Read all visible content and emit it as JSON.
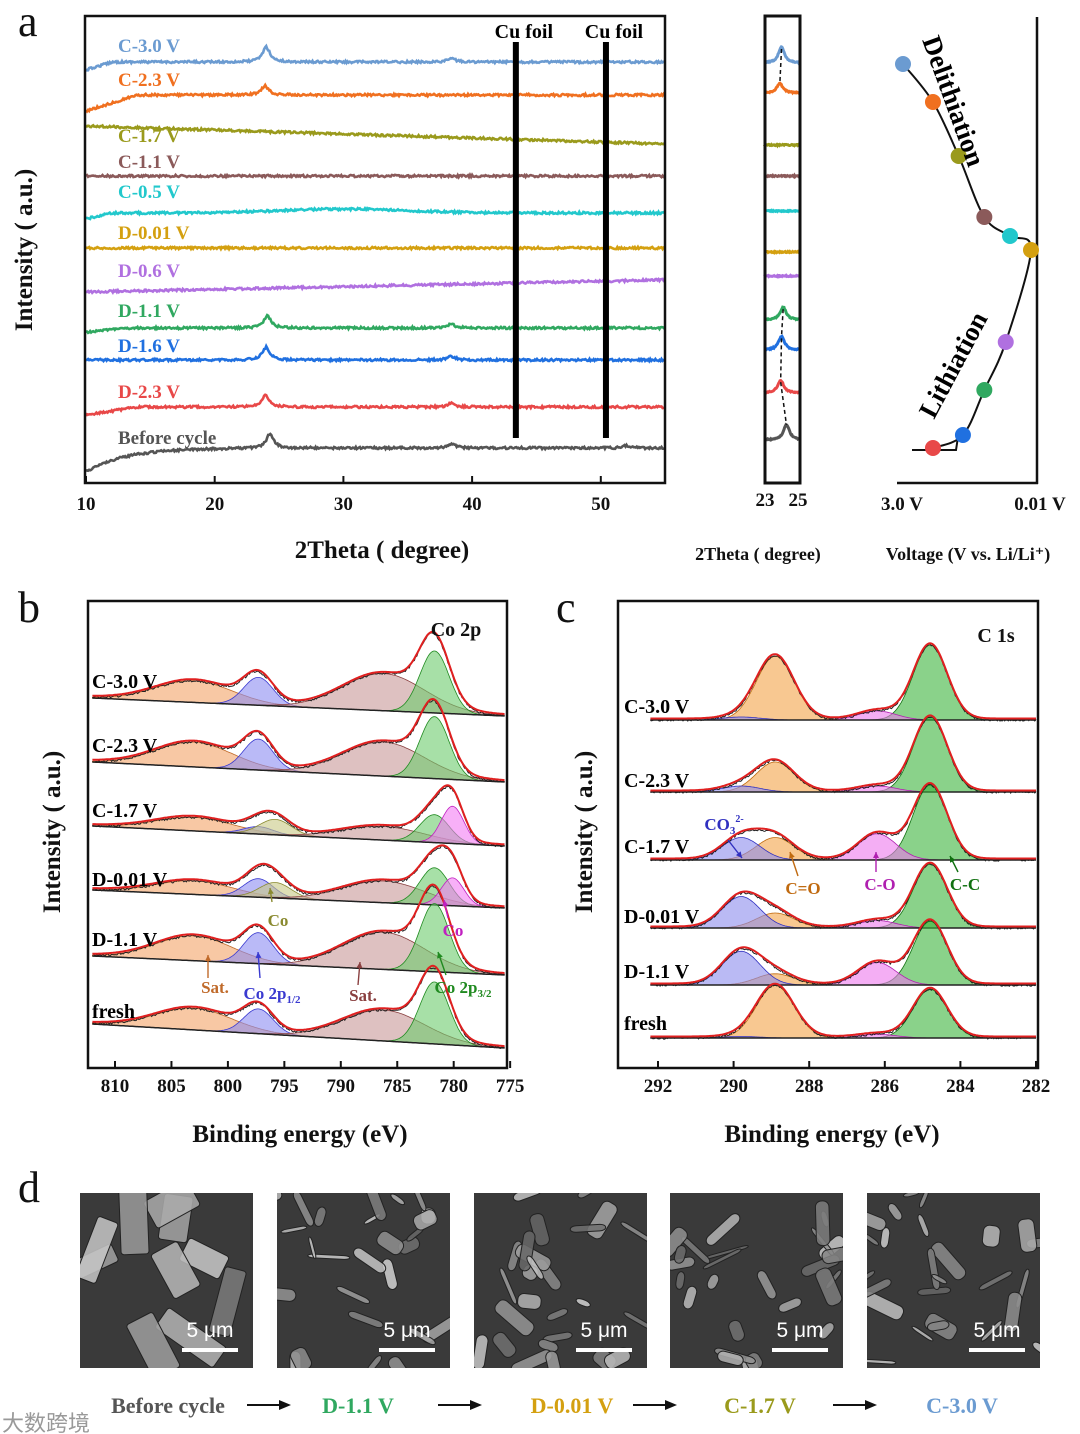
{
  "panel_labels": {
    "a": "a",
    "b": "b",
    "c": "c",
    "d": "d"
  },
  "chart_data": [
    {
      "type": "line",
      "panel": "a",
      "title": "",
      "xlabel": "2Theta  ( degree)",
      "ylabel": "Intensity ( a.u.)",
      "xlim": [
        10,
        55
      ],
      "xticks": [
        10,
        20,
        30,
        40,
        50
      ],
      "annotations": [
        {
          "text": "Cu foil",
          "x": 43.4
        },
        {
          "text": "Cu foil",
          "x": 50.4
        }
      ],
      "series": [
        {
          "name": "C-3.0 V",
          "color": "#6b9bd1",
          "peaks": [
            [
              24.0,
              1.0
            ],
            [
              38.4,
              0.25
            ]
          ]
        },
        {
          "name": "C-2.3 V",
          "color": "#f07020",
          "peaks": [
            [
              23.9,
              0.6
            ]
          ]
        },
        {
          "name": "C-1.7 V",
          "color": "#9a9a1c",
          "peaks": []
        },
        {
          "name": "C-1.1 V",
          "color": "#8b5a5a",
          "peaks": []
        },
        {
          "name": "C-0.5 V",
          "color": "#22c8cc",
          "peaks": []
        },
        {
          "name": "D-0.01 V",
          "color": "#d4a010",
          "peaks": []
        },
        {
          "name": "D-0.6 V",
          "color": "#b070e0",
          "peaks": []
        },
        {
          "name": "D-1.1 V",
          "color": "#30a860",
          "peaks": [
            [
              24.1,
              0.8
            ],
            [
              38.4,
              0.25
            ]
          ]
        },
        {
          "name": "D-1.6 V",
          "color": "#2070e0",
          "peaks": [
            [
              24.0,
              0.85
            ],
            [
              38.4,
              0.25
            ]
          ]
        },
        {
          "name": "D-2.3 V",
          "color": "#e84848",
          "peaks": [
            [
              23.95,
              0.8
            ],
            [
              38.4,
              0.25
            ]
          ]
        },
        {
          "name": "Before cycle",
          "color": "#555555",
          "peaks": [
            [
              24.3,
              0.95
            ],
            [
              38.4,
              0.3
            ],
            [
              52.0,
              0.15
            ]
          ]
        }
      ]
    },
    {
      "type": "line",
      "panel": "a-inset",
      "xlabel": "2Theta  ( degree)",
      "xlim": [
        23,
        25
      ],
      "xticks": [
        23,
        25
      ]
    },
    {
      "type": "scatter",
      "panel": "a-voltage",
      "xlabel": "Voltage (V vs. Li/Li⁺)",
      "xtick_labels": [
        "3.0 V",
        "0.01 V"
      ],
      "annotations": [
        "Delithiation",
        "Lithiation"
      ],
      "points": [
        {
          "name": "C-3.0 V",
          "voltage": 3.0
        },
        {
          "name": "C-2.3 V",
          "voltage": 2.3
        },
        {
          "name": "C-1.7 V",
          "voltage": 1.7
        },
        {
          "name": "C-1.1 V",
          "voltage": 1.1
        },
        {
          "name": "C-0.5 V",
          "voltage": 0.5
        },
        {
          "name": "D-0.01 V",
          "voltage": 0.01
        },
        {
          "name": "D-0.6 V",
          "voltage": 0.6
        },
        {
          "name": "D-1.1 V",
          "voltage": 1.1
        },
        {
          "name": "D-1.6 V",
          "voltage": 1.6
        },
        {
          "name": "D-2.3 V",
          "voltage": 2.3
        }
      ]
    },
    {
      "type": "line",
      "panel": "b",
      "title": "Co 2p",
      "xlabel": "Binding energy (eV)",
      "ylabel": "Intensity ( a.u.)",
      "xlim": [
        812,
        775
      ],
      "xticks": [
        810,
        805,
        800,
        795,
        790,
        785,
        780,
        775
      ],
      "components": {
        "sat1": {
          "label": "Sat.",
          "fill": "#f4a468",
          "stroke": "#c06a2a",
          "center": 803,
          "width": 3.4
        },
        "p12": {
          "label": "Co 2p",
          "sub": "1/2",
          "fill": "#8c8cf2",
          "stroke": "#3a3ad0",
          "center": 797.3,
          "width": 1.3
        },
        "co_a": {
          "label": "Co",
          "fill": "#c8c884",
          "stroke": "#8a8a30",
          "center": 795.8,
          "width": 1.4
        },
        "sat2": {
          "label": "Sat.",
          "fill": "#c89898",
          "stroke": "#8a4040",
          "center": 786.2,
          "width": 3.6
        },
        "p32": {
          "label": "Co 2p",
          "sub": "3/2",
          "fill": "#6ccc6c",
          "stroke": "#208a20",
          "center": 781.7,
          "width": 1.3
        },
        "co_b": {
          "label": "Co",
          "fill": "#f47cf4",
          "stroke": "#c020c0",
          "center": 780.1,
          "width": 1.0
        }
      },
      "series": [
        {
          "name": "C-3.0 V",
          "amps": {
            "sat1": 0.35,
            "p12": 0.45,
            "sat2": 0.6,
            "p32": 1.0
          }
        },
        {
          "name": "C-2.3 V",
          "amps": {
            "sat1": 0.4,
            "p12": 0.5,
            "sat2": 0.55,
            "p32": 1.0
          }
        },
        {
          "name": "C-1.7 V",
          "amps": {
            "sat1": 0.22,
            "p12": 0.12,
            "co_a": 0.25,
            "sat2": 0.22,
            "p32": 0.45,
            "co_b": 0.6
          }
        },
        {
          "name": "D-0.01 V",
          "amps": {
            "sat1": 0.22,
            "p12": 0.3,
            "co_a": 0.25,
            "sat2": 0.35,
            "p32": 0.6,
            "co_b": 0.45
          }
        },
        {
          "name": "D-1.1 V",
          "amps": {
            "sat1": 0.4,
            "p12": 0.5,
            "sat2": 0.6,
            "p32": 1.1
          }
        },
        {
          "name": "fresh",
          "amps": {
            "sat1": 0.35,
            "p12": 0.4,
            "sat2": 0.5,
            "p32": 1.0
          }
        }
      ],
      "annotations": [
        {
          "text": "Co",
          "component": "co_a"
        },
        {
          "text": "Co",
          "component": "co_b"
        },
        {
          "text": "Sat.",
          "component": "sat1"
        },
        {
          "text": "Co 2p",
          "sub": "1/2",
          "component": "p12"
        },
        {
          "text": "Sat.",
          "component": "sat2"
        },
        {
          "text": "Co 2p",
          "sub": "3/2",
          "component": "p32"
        }
      ]
    },
    {
      "type": "line",
      "panel": "c",
      "title": "C 1s",
      "xlabel": "Binding energy (eV)",
      "ylabel": "Intensity ( a.u.)",
      "xlim": [
        292.4,
        282
      ],
      "xticks": [
        292,
        290,
        288,
        286,
        284,
        282
      ],
      "components": {
        "cc": {
          "label": "C-C",
          "fill": "#3cb43c",
          "stroke": "#107010",
          "center": 284.8,
          "width": 0.45
        },
        "co": {
          "label": "C-O",
          "fill": "#ec78ec",
          "stroke": "#b020b0",
          "center": 286.2,
          "width": 0.5
        },
        "cdo": {
          "label": "C=O",
          "fill": "#f4a448",
          "stroke": "#c06a10",
          "center": 288.9,
          "width": 0.5
        },
        "co3": {
          "label": "CO",
          "sub": "3",
          "sup": "2-",
          "fill": "#8c8cec",
          "stroke": "#3030c0",
          "center": 289.8,
          "width": 0.5
        }
      },
      "series": [
        {
          "name": "C-3.0 V",
          "amps": {
            "cc": 1.0,
            "co": 0.12,
            "cdo": 0.85,
            "co3": 0.04
          }
        },
        {
          "name": "C-2.3 V",
          "amps": {
            "cc": 1.0,
            "co": 0.08,
            "cdo": 0.4,
            "co3": 0.08
          }
        },
        {
          "name": "C-1.7 V",
          "amps": {
            "cc": 1.0,
            "co": 0.35,
            "cdo": 0.3,
            "co3": 0.3
          }
        },
        {
          "name": "D-0.01 V",
          "amps": {
            "cc": 0.85,
            "co": 0.1,
            "cdo": 0.2,
            "co3": 0.42
          }
        },
        {
          "name": "D-1.1 V",
          "amps": {
            "cc": 0.85,
            "co": 0.3,
            "cdo": 0.15,
            "co3": 0.45
          }
        },
        {
          "name": "fresh",
          "amps": {
            "cc": 0.65,
            "co": 0.05,
            "cdo": 0.7,
            "co3": 0.02
          }
        }
      ],
      "annotations": [
        {
          "text": "CO",
          "sub": "3",
          "sup": "2-",
          "component": "co3"
        },
        {
          "text": "C=O",
          "component": "cdo"
        },
        {
          "text": "C-O",
          "component": "co"
        },
        {
          "text": "C-C",
          "component": "cc"
        }
      ]
    }
  ],
  "sem": {
    "scale_bar": "5 μm",
    "arrow": "⟶",
    "sequence": [
      {
        "label": "Before cycle",
        "color": "#555555"
      },
      {
        "label": "D-1.1 V",
        "color": "#30a860"
      },
      {
        "label": "D-0.01 V",
        "color": "#d4a010"
      },
      {
        "label": "C-1.7 V",
        "color": "#9a9a1c"
      },
      {
        "label": "C-3.0 V",
        "color": "#6b9bd1"
      }
    ]
  },
  "watermark": "大数跨境"
}
